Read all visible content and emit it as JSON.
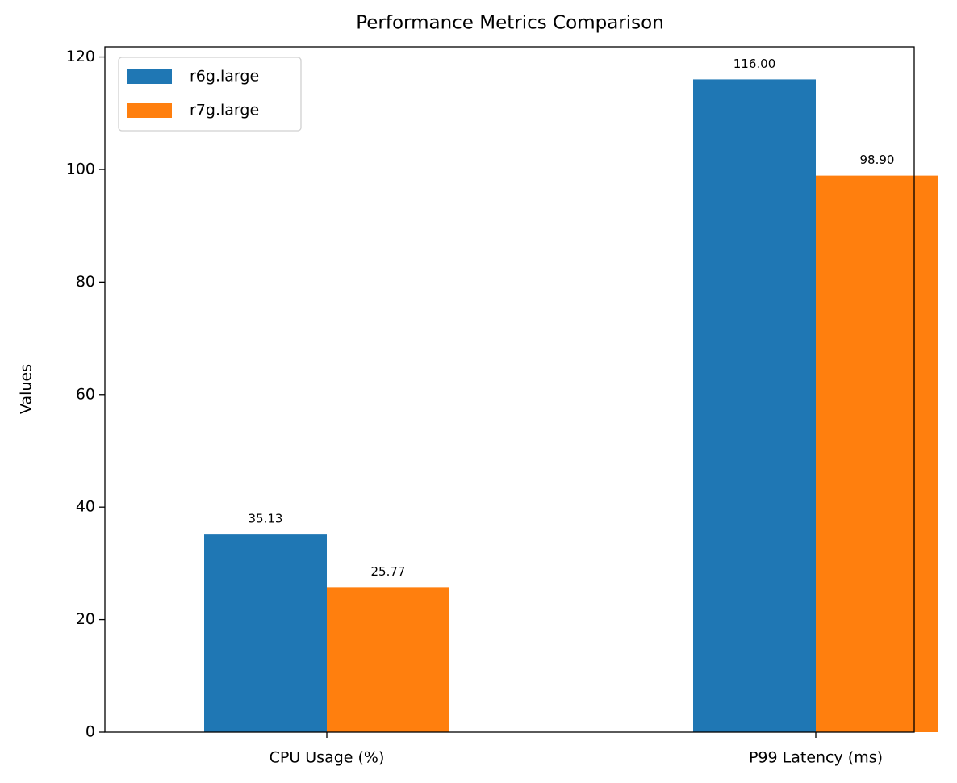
{
  "chart_data": {
    "type": "bar",
    "title": "Performance Metrics Comparison",
    "y_label": "Values",
    "categories": [
      "CPU Usage (%)",
      "P99 Latency (ms)"
    ],
    "series": [
      {
        "name": "r6g.large",
        "color": "#1f77b4",
        "values": [
          35.13,
          116.0
        ],
        "value_labels": [
          "35.13",
          "116.00"
        ]
      },
      {
        "name": "r7g.large",
        "color": "#ff7f0e",
        "values": [
          25.77,
          98.9
        ],
        "value_labels": [
          "25.77",
          "98.90"
        ]
      }
    ],
    "ylim": [
      0,
      121.8
    ],
    "yticks": [
      0,
      20,
      40,
      60,
      80,
      100,
      120
    ],
    "grid": false,
    "legend": "upper left"
  }
}
